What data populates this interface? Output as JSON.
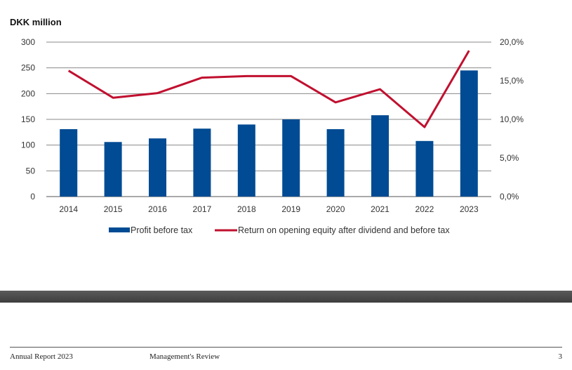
{
  "chart_data": {
    "type": "bar",
    "unit_label": "DKK million",
    "categories": [
      "2014",
      "2015",
      "2016",
      "2017",
      "2018",
      "2019",
      "2020",
      "2021",
      "2022",
      "2023"
    ],
    "series": [
      {
        "name": "Profit before tax",
        "kind": "bar",
        "axis": "left",
        "color": "#004b93",
        "values": [
          131,
          106,
          113,
          132,
          140,
          150,
          131,
          158,
          108,
          245
        ]
      },
      {
        "name": "Return on opening equity after dividend and before tax",
        "kind": "line",
        "axis": "right",
        "color": "#c1102f",
        "values": [
          16.3,
          12.8,
          13.4,
          15.4,
          15.6,
          15.6,
          12.2,
          13.9,
          9.0,
          18.9
        ]
      }
    ],
    "y_left": {
      "min": 0,
      "max": 300,
      "ticks": [
        "0",
        "50",
        "100",
        "150",
        "200",
        "250",
        "300"
      ]
    },
    "y_right": {
      "min": 0,
      "max": 20,
      "ticks": [
        "0,0%",
        "5,0%",
        "10,0%",
        "15,0%",
        "20,0%"
      ]
    },
    "grid": true,
    "legend": "bottom"
  },
  "footer": {
    "left": "Annual Report 2023",
    "middle": "Management's Review",
    "page": "3"
  }
}
